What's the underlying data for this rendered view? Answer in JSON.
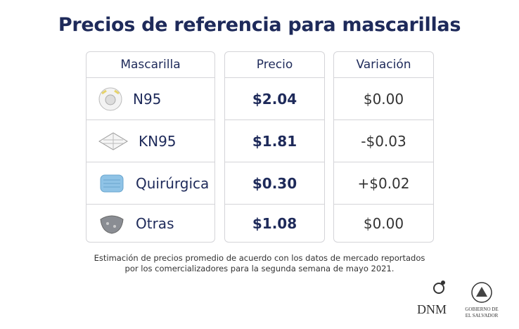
{
  "header": {
    "title": "Precios de referencia para mascarillas"
  },
  "table": {
    "columns": [
      "Mascarilla",
      "Precio",
      "Variación"
    ],
    "rows": [
      [
        "N95",
        "$2.04",
        "$0.00"
      ],
      [
        "KN95",
        "$1.81",
        "-$0.03"
      ],
      [
        "Quirúrgica",
        "$0.30",
        "+$0.02"
      ],
      [
        "Otras",
        "$1.08",
        "$0.00"
      ]
    ]
  },
  "footnote": [
    "Estimación de precios promedio de acuerdo con los datos de mercado reportados",
    "por los comercializadores para la segunda semana de mayo 2021."
  ],
  "logos": {
    "dnm": "DNM",
    "gobierno": [
      "GOBIERNO DE",
      "EL SALVADOR"
    ]
  }
}
